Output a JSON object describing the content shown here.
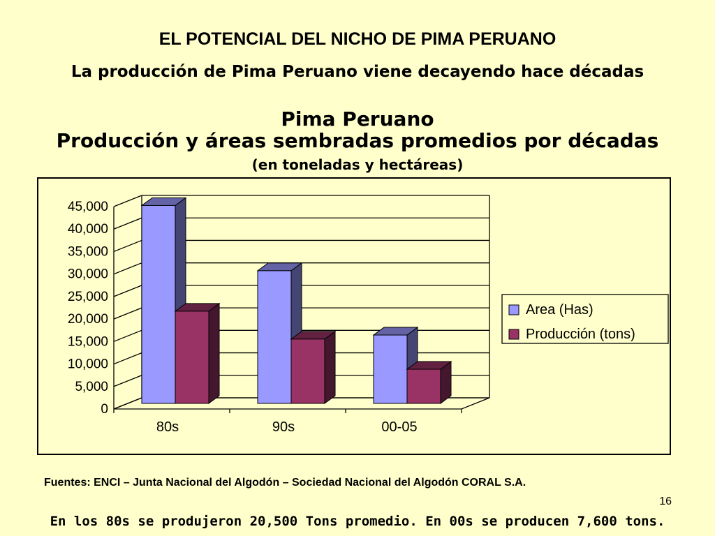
{
  "slide": {
    "title": "EL POTENCIAL DEL NICHO DE PIMA PERUANO",
    "subtitle": "La producción de Pima Peruano viene decayendo hace décadas",
    "chart_title_line1": "Pima Peruano",
    "chart_title_line2": "Producción y áreas sembradas promedios por décadas",
    "chart_subtitle": "(en toneladas y hectáreas)",
    "sources": "Fuentes: ENCI – Junta Nacional del Algodón – Sociedad Nacional del Algodón CORAL S.A.",
    "page_number": "16",
    "footer_note": "En los 80s se produjeron 20,500 Tons promedio. En 00s se producen 7,600 tons."
  },
  "colors": {
    "background": "#FFFFCC",
    "area_series": "#9999FF",
    "production_series": "#993366"
  },
  "chart_data": {
    "type": "bar",
    "title": "Pima Peruano",
    "subtitle": "Producción y áreas sembradas promedios por décadas",
    "categories": [
      "80s",
      "90s",
      "00-05"
    ],
    "series": [
      {
        "name": "Area (Has)",
        "values": [
          44000,
          29500,
          15200
        ],
        "color": "#9999FF"
      },
      {
        "name": "Producción (tons)",
        "values": [
          20500,
          14300,
          7600
        ],
        "color": "#993366"
      }
    ],
    "ylim": [
      0,
      45000
    ],
    "yticks": [
      0,
      5000,
      10000,
      15000,
      20000,
      25000,
      30000,
      35000,
      40000,
      45000
    ],
    "ytick_labels": [
      "0",
      "5,000",
      "10,000",
      "15,000",
      "20,000",
      "25,000",
      "30,000",
      "35,000",
      "40,000",
      "45,000"
    ],
    "grid": true,
    "three_d": true,
    "legend_position": "right"
  }
}
